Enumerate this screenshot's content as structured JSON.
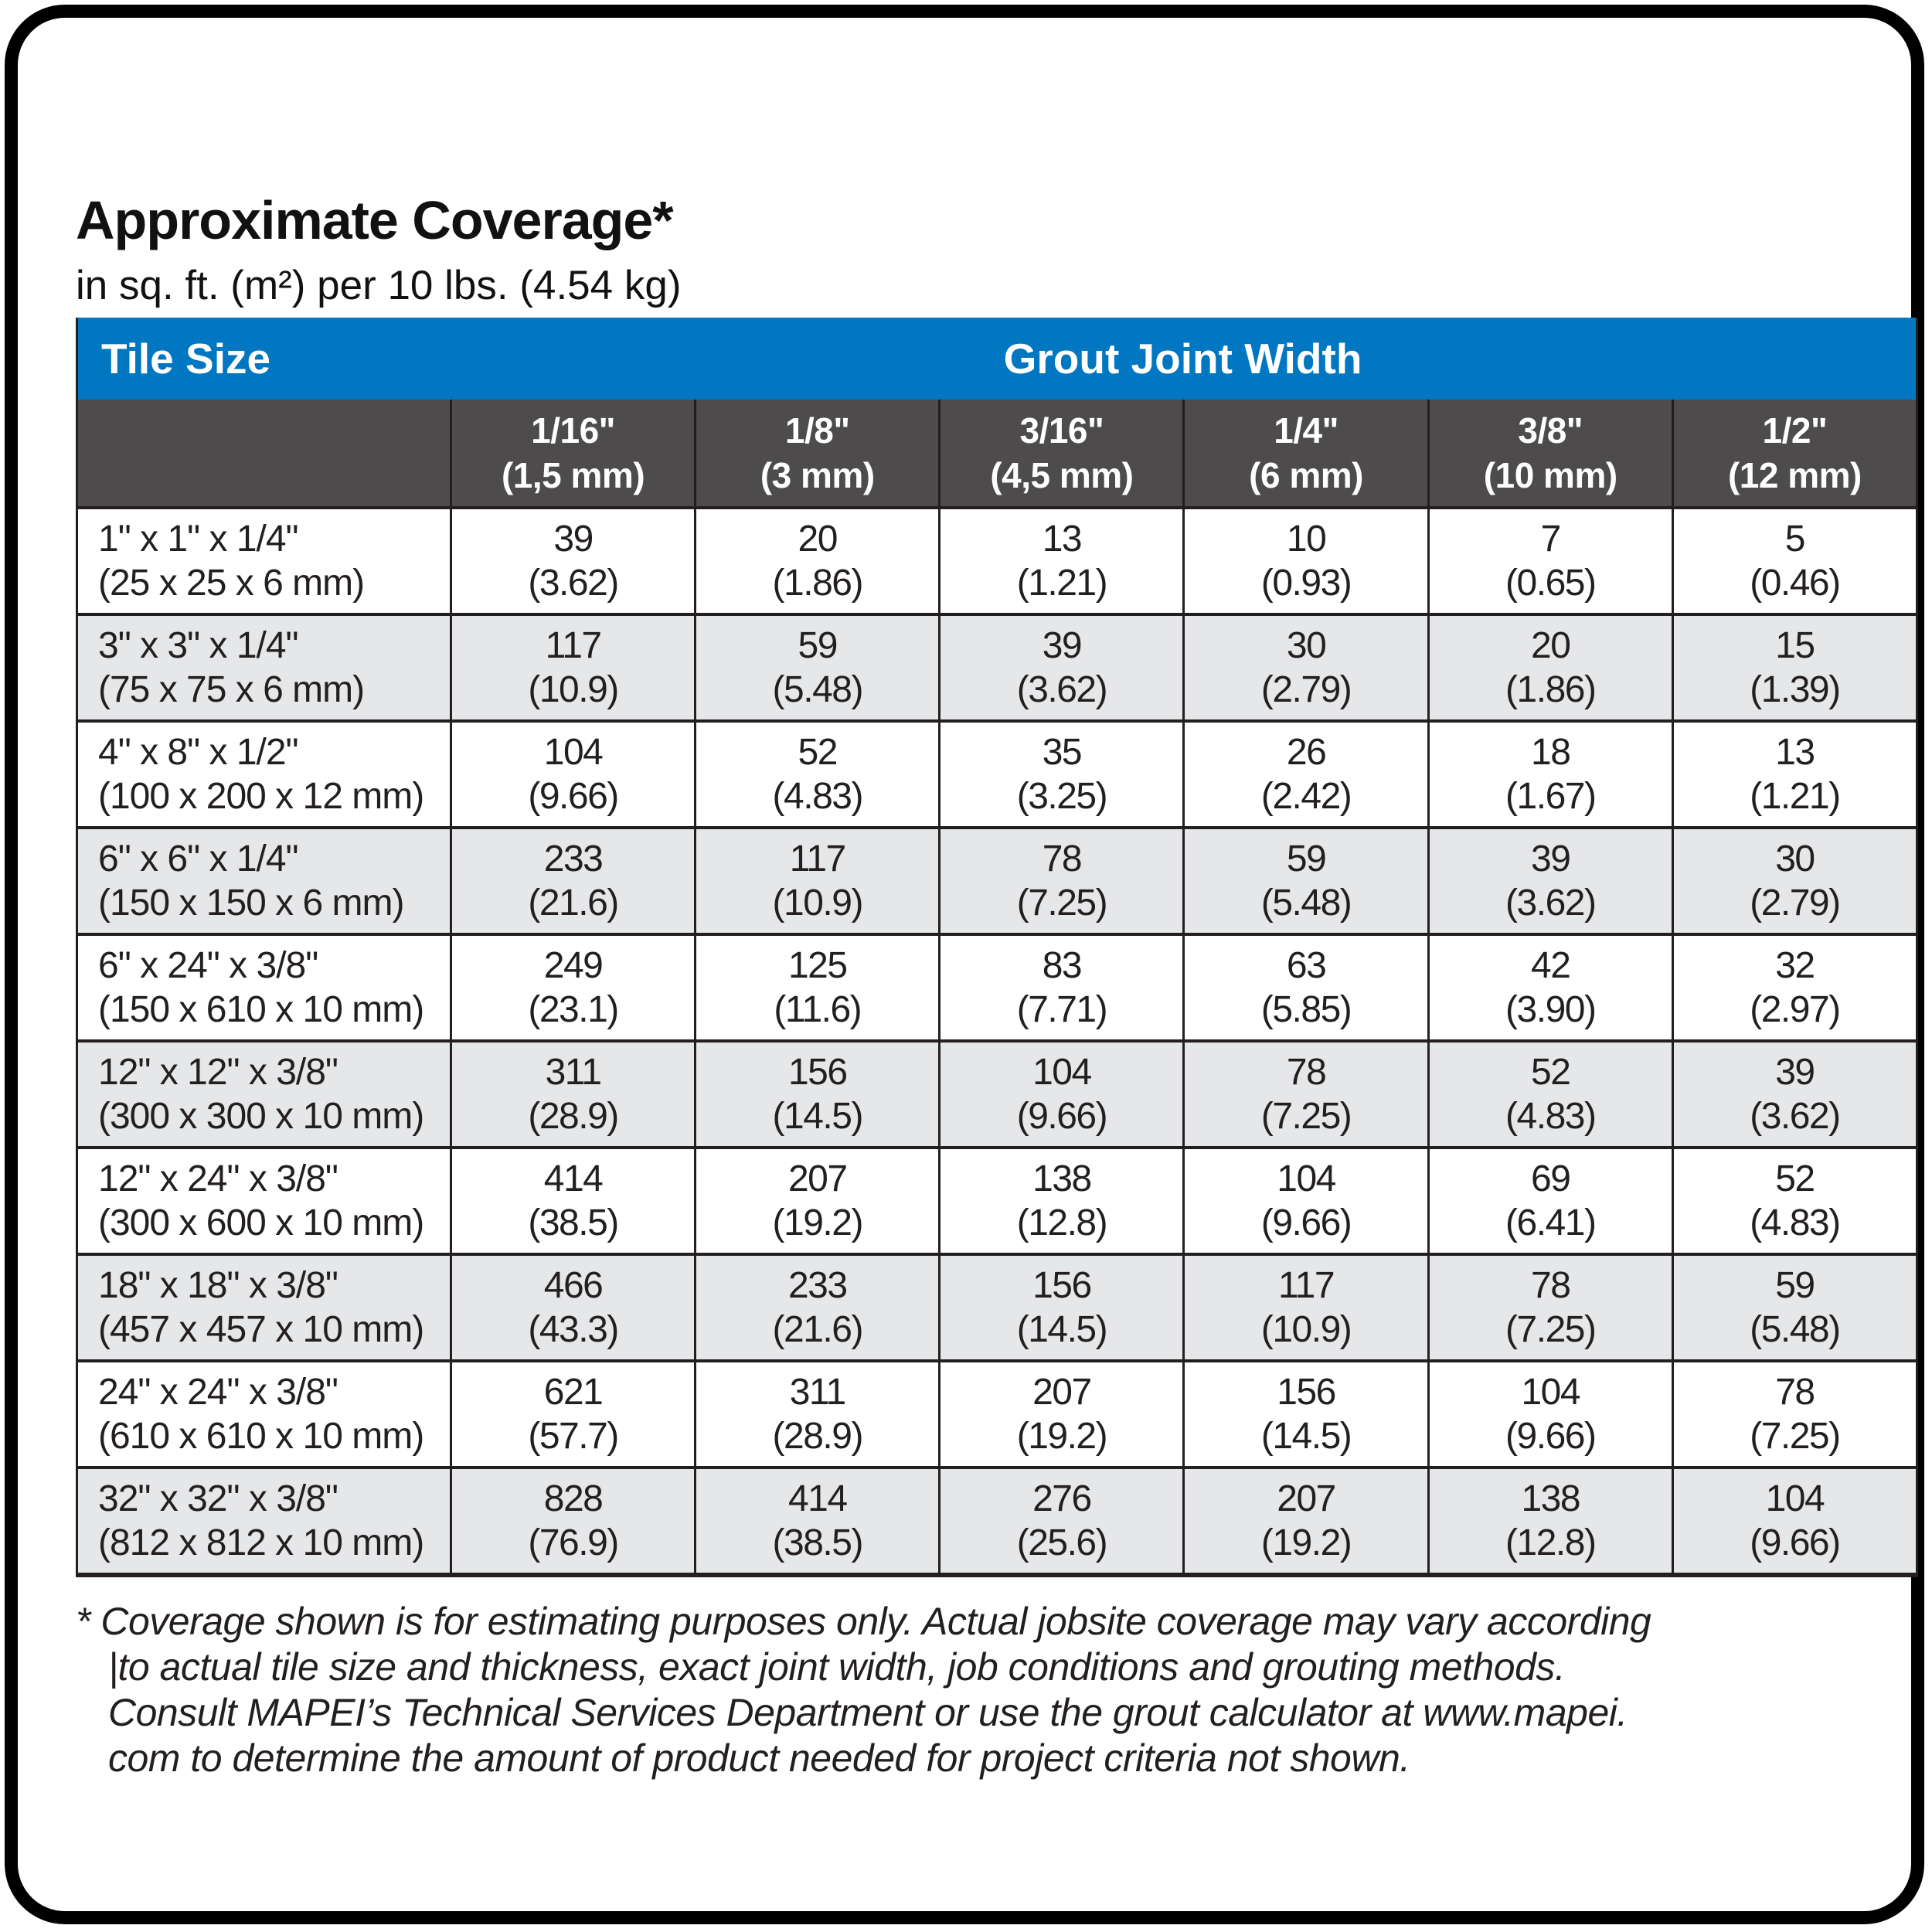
{
  "title": "Approximate Coverage*",
  "subtitle": "in sq. ft. (m²) per 10 lbs. (4.54 kg)",
  "table": {
    "corner_label": "Tile Size",
    "group_header": "Grout Joint Width",
    "columns": [
      {
        "line1": "1/16\"",
        "line2": "(1,5 mm)"
      },
      {
        "line1": "1/8\"",
        "line2": "(3 mm)"
      },
      {
        "line1": "3/16\"",
        "line2": "(4,5 mm)"
      },
      {
        "line1": "1/4\"",
        "line2": "(6 mm)"
      },
      {
        "line1": "3/8\"",
        "line2": "(10 mm)"
      },
      {
        "line1": "1/2\"",
        "line2": "(12 mm)"
      }
    ],
    "rows": [
      {
        "size": "1\" x 1\" x 1/4\"",
        "metric": "(25 x 25 x 6 mm)",
        "values": [
          [
            "39",
            "(3.62)"
          ],
          [
            "20",
            "(1.86)"
          ],
          [
            "13",
            "(1.21)"
          ],
          [
            "10",
            "(0.93)"
          ],
          [
            "7",
            "(0.65)"
          ],
          [
            "5",
            "(0.46)"
          ]
        ]
      },
      {
        "size": "3\" x 3\" x 1/4\"",
        "metric": "(75 x 75 x 6 mm)",
        "values": [
          [
            "117",
            "(10.9)"
          ],
          [
            "59",
            "(5.48)"
          ],
          [
            "39",
            "(3.62)"
          ],
          [
            "30",
            "(2.79)"
          ],
          [
            "20",
            "(1.86)"
          ],
          [
            "15",
            "(1.39)"
          ]
        ]
      },
      {
        "size": "4\" x 8\" x 1/2\"",
        "metric": "(100 x 200 x 12 mm)",
        "values": [
          [
            "104",
            "(9.66)"
          ],
          [
            "52",
            "(4.83)"
          ],
          [
            "35",
            "(3.25)"
          ],
          [
            "26",
            "(2.42)"
          ],
          [
            "18",
            "(1.67)"
          ],
          [
            "13",
            "(1.21)"
          ]
        ]
      },
      {
        "size": "6\" x 6\" x 1/4\"",
        "metric": "(150 x 150 x 6 mm)",
        "values": [
          [
            "233",
            "(21.6)"
          ],
          [
            "117",
            "(10.9)"
          ],
          [
            "78",
            "(7.25)"
          ],
          [
            "59",
            "(5.48)"
          ],
          [
            "39",
            "(3.62)"
          ],
          [
            "30",
            "(2.79)"
          ]
        ]
      },
      {
        "size": "6\" x 24\" x 3/8\"",
        "metric": "(150 x 610 x 10 mm)",
        "values": [
          [
            "249",
            "(23.1)"
          ],
          [
            "125",
            "(11.6)"
          ],
          [
            "83",
            "(7.71)"
          ],
          [
            "63",
            "(5.85)"
          ],
          [
            "42",
            "(3.90)"
          ],
          [
            "32",
            "(2.97)"
          ]
        ]
      },
      {
        "size": "12\" x 12\" x 3/8\"",
        "metric": "(300 x 300 x 10 mm)",
        "values": [
          [
            "311",
            "(28.9)"
          ],
          [
            "156",
            "(14.5)"
          ],
          [
            "104",
            "(9.66)"
          ],
          [
            "78",
            "(7.25)"
          ],
          [
            "52",
            "(4.83)"
          ],
          [
            "39",
            "(3.62)"
          ]
        ]
      },
      {
        "size": "12\" x 24\" x 3/8\"",
        "metric": "(300 x 600 x 10 mm)",
        "values": [
          [
            "414",
            "(38.5)"
          ],
          [
            "207",
            "(19.2)"
          ],
          [
            "138",
            "(12.8)"
          ],
          [
            "104",
            "(9.66)"
          ],
          [
            "69",
            "(6.41)"
          ],
          [
            "52",
            "(4.83)"
          ]
        ]
      },
      {
        "size": "18\" x 18\" x 3/8\"",
        "metric": "(457 x 457 x 10 mm)",
        "values": [
          [
            "466",
            "(43.3)"
          ],
          [
            "233",
            "(21.6)"
          ],
          [
            "156",
            "(14.5)"
          ],
          [
            "117",
            "(10.9)"
          ],
          [
            "78",
            "(7.25)"
          ],
          [
            "59",
            "(5.48)"
          ]
        ]
      },
      {
        "size": "24\" x 24\" x 3/8\"",
        "metric": "(610 x 610 x 10 mm)",
        "values": [
          [
            "621",
            "(57.7)"
          ],
          [
            "311",
            "(28.9)"
          ],
          [
            "207",
            "(19.2)"
          ],
          [
            "156",
            "(14.5)"
          ],
          [
            "104",
            "(9.66)"
          ],
          [
            "78",
            "(7.25)"
          ]
        ]
      },
      {
        "size": "32\" x 32\" x 3/8\"",
        "metric": "(812 x 812 x 10 mm)",
        "values": [
          [
            "828",
            "(76.9)"
          ],
          [
            "414",
            "(38.5)"
          ],
          [
            "276",
            "(25.6)"
          ],
          [
            "207",
            "(19.2)"
          ],
          [
            "138",
            "(12.8)"
          ],
          [
            "104",
            "(9.66)"
          ]
        ]
      }
    ]
  },
  "footnote_lines": [
    "* Coverage shown is for estimating purposes only. Actual jobsite coverage may vary according",
    "|to actual tile size and thickness, exact joint width, job conditions and grouting methods.",
    "Consult MAPEI’s Technical Services Department or use the grout calculator at www.mapei.",
    "com to determine the amount of product needed for project criteria not shown."
  ],
  "colors": {
    "header_blue": "#0077c0",
    "header_dark_gray": "#4d4b4c",
    "row_alt_gray": "#e6e7e8",
    "border": "#231f20",
    "card_border": "#000000"
  }
}
